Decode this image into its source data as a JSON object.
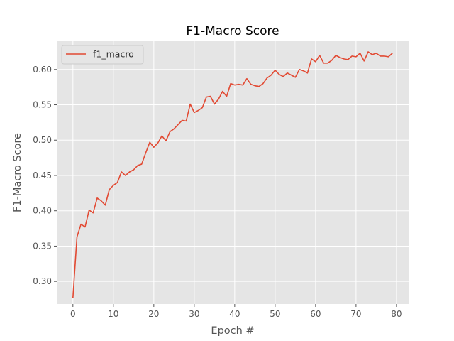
{
  "chart_data": {
    "type": "line",
    "title": "F1-Macro Score",
    "xlabel": "Epoch #",
    "ylabel": "F1-Macro Score",
    "xlim": [
      -4,
      83
    ],
    "ylim": [
      0.268,
      0.64
    ],
    "xticks": [
      0,
      10,
      20,
      30,
      40,
      50,
      60,
      70,
      80
    ],
    "yticks": [
      0.3,
      0.35,
      0.4,
      0.45,
      0.5,
      0.55,
      0.6
    ],
    "ytick_labels": [
      "0.30",
      "0.35",
      "0.40",
      "0.45",
      "0.50",
      "0.55",
      "0.60"
    ],
    "grid": true,
    "legend_position": "top-left",
    "series": [
      {
        "name": "f1_macro",
        "color": "#E24A33",
        "x": [
          0,
          1,
          2,
          3,
          4,
          5,
          6,
          7,
          8,
          9,
          10,
          11,
          12,
          13,
          14,
          15,
          16,
          17,
          18,
          19,
          20,
          21,
          22,
          23,
          24,
          25,
          26,
          27,
          28,
          29,
          30,
          31,
          32,
          33,
          34,
          35,
          36,
          37,
          38,
          39,
          40,
          41,
          42,
          43,
          44,
          45,
          46,
          47,
          48,
          49,
          50,
          51,
          52,
          53,
          54,
          55,
          56,
          57,
          58,
          59,
          60,
          61,
          62,
          63,
          64,
          65,
          66,
          67,
          68,
          69,
          70,
          71,
          72,
          73,
          74,
          75,
          76,
          77,
          78,
          79
        ],
        "values": [
          0.277,
          0.363,
          0.381,
          0.377,
          0.401,
          0.397,
          0.418,
          0.414,
          0.408,
          0.43,
          0.436,
          0.44,
          0.455,
          0.45,
          0.455,
          0.458,
          0.464,
          0.466,
          0.482,
          0.497,
          0.49,
          0.496,
          0.506,
          0.499,
          0.512,
          0.516,
          0.522,
          0.528,
          0.527,
          0.551,
          0.539,
          0.542,
          0.546,
          0.561,
          0.562,
          0.551,
          0.558,
          0.569,
          0.562,
          0.58,
          0.578,
          0.579,
          0.578,
          0.587,
          0.579,
          0.577,
          0.576,
          0.58,
          0.588,
          0.592,
          0.599,
          0.593,
          0.59,
          0.595,
          0.592,
          0.589,
          0.6,
          0.598,
          0.595,
          0.615,
          0.611,
          0.62,
          0.609,
          0.609,
          0.613,
          0.62,
          0.617,
          0.615,
          0.614,
          0.619,
          0.618,
          0.623,
          0.612,
          0.625,
          0.621,
          0.623,
          0.619,
          0.619,
          0.618,
          0.623
        ]
      }
    ]
  }
}
